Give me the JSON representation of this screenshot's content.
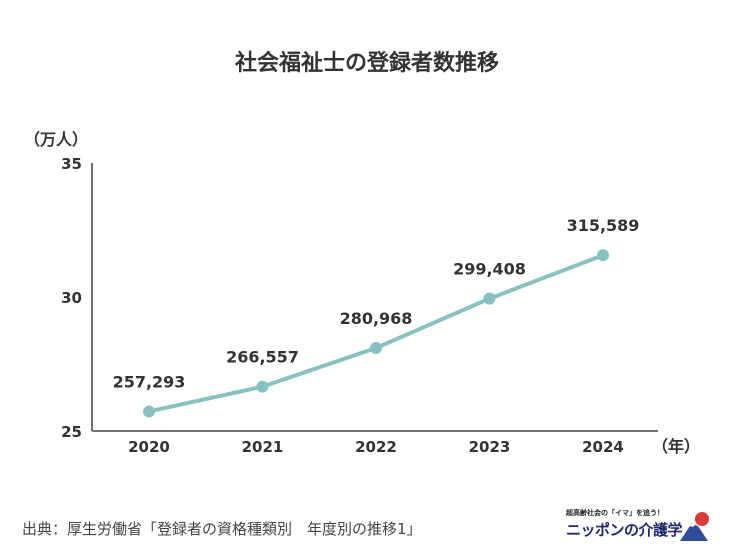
{
  "chart_data": {
    "type": "line",
    "title": "社会福祉士の登録者数推移",
    "ylabel": "（万人）",
    "xlabel": "（年）",
    "categories": [
      "2020",
      "2021",
      "2022",
      "2023",
      "2024"
    ],
    "values": [
      25.7293,
      26.6557,
      28.0968,
      29.9408,
      31.5589
    ],
    "data_labels": [
      "257,293",
      "266,557",
      "280,968",
      "299,408",
      "315,589"
    ],
    "ylim": [
      25,
      35
    ],
    "yticks": [
      "25",
      "30",
      "35"
    ],
    "grid": false,
    "line_color": "#88c1c1",
    "marker_color": "#88c1c1"
  },
  "source": "出典：厚生労働省「登録者の資格種類別　年度別の推移1」",
  "brand": {
    "tagline": "超高齢社会の「イマ」を追う！",
    "name": "ニッポンの介護学"
  }
}
